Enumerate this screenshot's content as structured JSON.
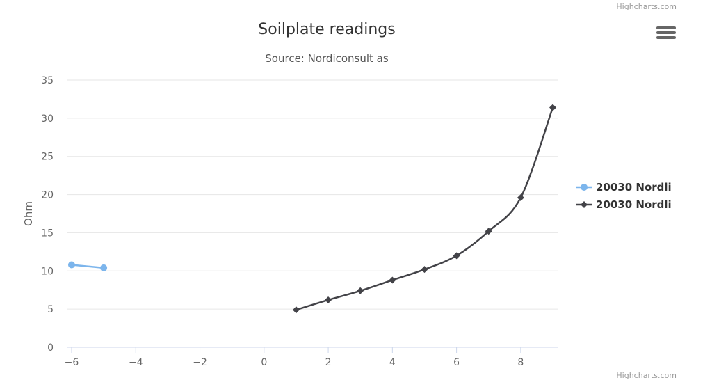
{
  "credits": {
    "top": "Highcharts.com",
    "bottom": "Highcharts.com"
  },
  "menu_icon": "hamburger-menu-icon",
  "chart_data": {
    "type": "line",
    "title": "Soilplate readings",
    "subtitle": "Source: Nordiconsult as",
    "xlabel": "",
    "ylabel": "Ohm",
    "xlim": [
      -6,
      9
    ],
    "ylim": [
      0,
      35
    ],
    "xticks": [
      -6,
      -4,
      -2,
      0,
      2,
      4,
      6,
      8
    ],
    "xtick_labels": [
      "−6",
      "−4",
      "−2",
      "0",
      "2",
      "4",
      "6",
      "8"
    ],
    "yticks": [
      0,
      5,
      10,
      15,
      20,
      25,
      30,
      35
    ],
    "grid": "horizontal",
    "legend_position": "right",
    "series": [
      {
        "name": "20030 Nordli",
        "color": "#7cb5ec",
        "marker": "circle",
        "smooth": false,
        "x": [
          -6,
          -5
        ],
        "y": [
          10.8,
          10.4
        ]
      },
      {
        "name": "20030 Nordli",
        "color": "#434348",
        "marker": "diamond",
        "smooth": true,
        "x": [
          1,
          2,
          3,
          4,
          5,
          6,
          7,
          8,
          9
        ],
        "y": [
          4.9,
          6.2,
          7.4,
          8.8,
          10.2,
          12.0,
          15.2,
          19.6,
          31.4
        ]
      }
    ]
  }
}
